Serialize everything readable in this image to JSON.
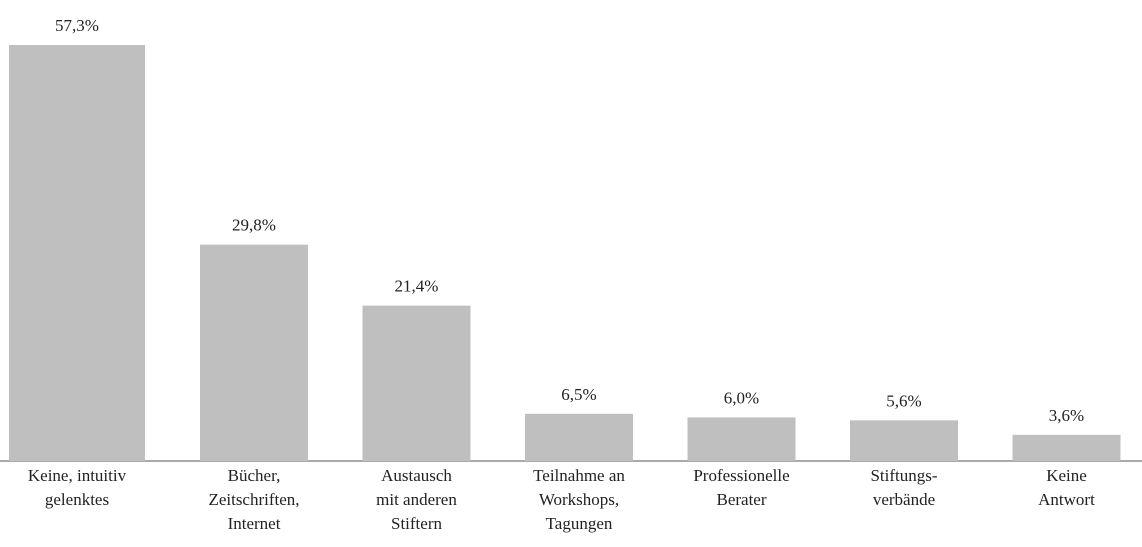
{
  "chart_data": {
    "type": "bar",
    "categories": [
      "Keine, intuitiv\ngelenktes",
      "Bücher,\nZeitschriften,\nInternet",
      "Austausch\nmit anderen\nStiftern",
      "Teilnahme an\nWorkshops,\nTagungen",
      "Professionelle\nBerater",
      "Stiftungs-\nverbände",
      "Keine\nAntwort"
    ],
    "values": [
      57.3,
      29.8,
      21.4,
      6.5,
      6.0,
      5.6,
      3.6
    ],
    "value_labels": [
      "57,3%",
      "29,8%",
      "21,4%",
      "6,5%",
      "6,0%",
      "5,6%",
      "3,6%"
    ],
    "color": "#bfbfbf"
  }
}
